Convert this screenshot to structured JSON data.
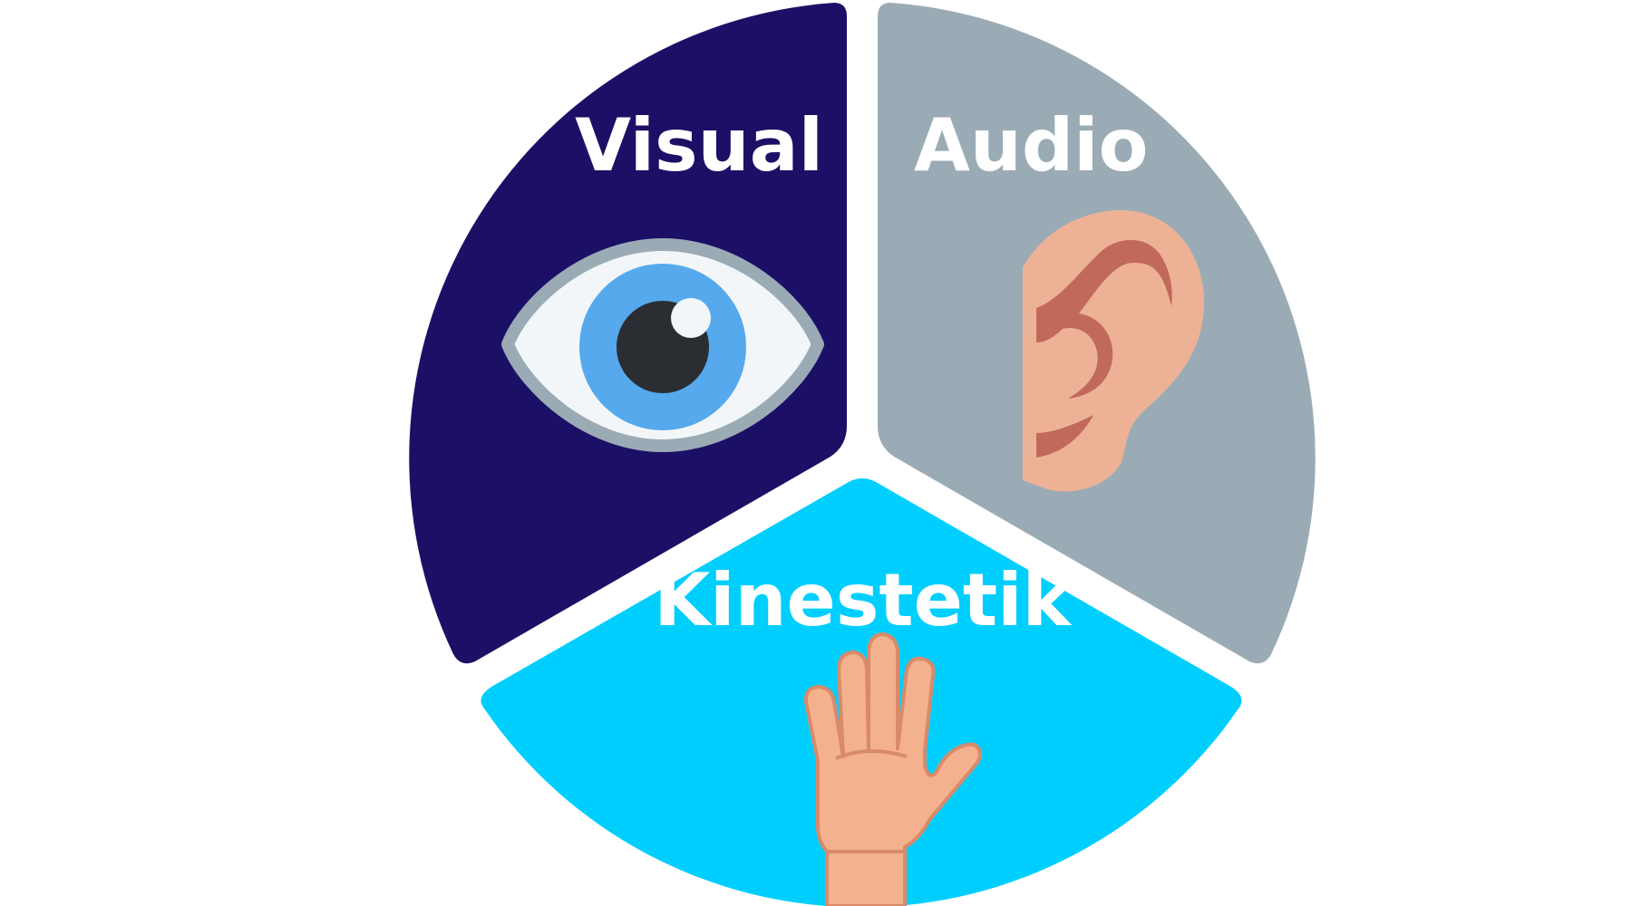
{
  "diagram": {
    "segments": [
      {
        "id": "visual",
        "label": "Visual",
        "color": "#1C1066",
        "icon": "eye-icon"
      },
      {
        "id": "audio",
        "label": "Audio",
        "color": "#9BABB5",
        "icon": "ear-icon"
      },
      {
        "id": "kinestetik",
        "label": "Kinestetik",
        "color": "#00CFFE",
        "icon": "hand-icon"
      }
    ],
    "label_color": "#FFFFFF",
    "background": "#FFFFFF"
  }
}
